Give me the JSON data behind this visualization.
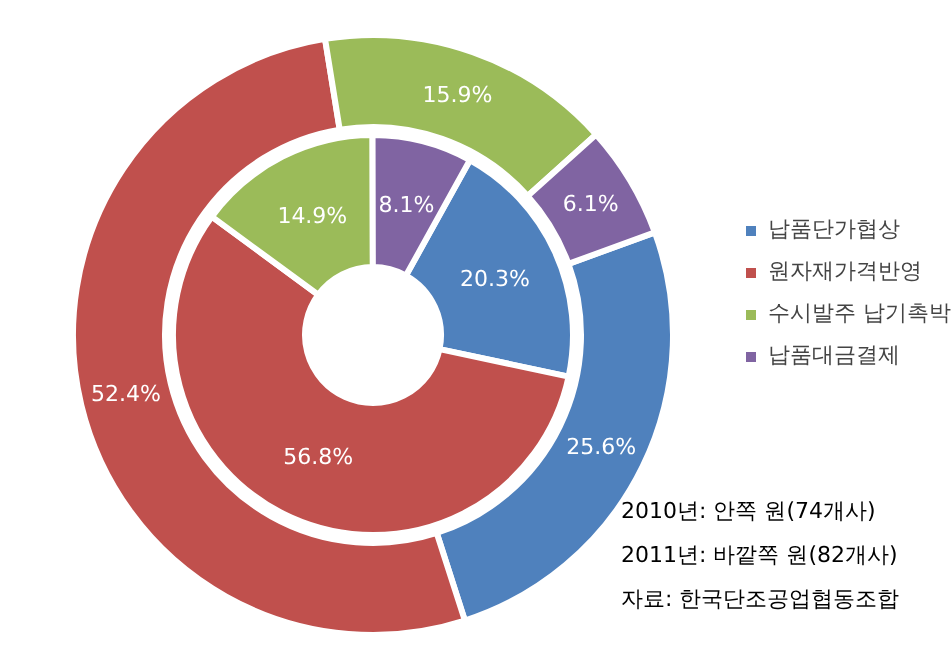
{
  "chart_data": {
    "type": "donut",
    "categories": [
      "납품단가협상",
      "원자재가격반영",
      "수시발주 납기촉박",
      "납품대금결제"
    ],
    "colors": [
      "#4f81bd",
      "#c0504d",
      "#9bbb59",
      "#8064a2"
    ],
    "series": [
      {
        "values": [
          20.3,
          56.8,
          14.9,
          8.1
        ],
        "value_labels": [
          "20.3%",
          "56.8%",
          "14.9%",
          "8.1%"
        ]
      },
      {
        "values": [
          25.6,
          52.4,
          15.9,
          6.1
        ],
        "value_labels": [
          "25.6%",
          "52.4%",
          "15.9%",
          "6.1%"
        ]
      }
    ],
    "legend": "right",
    "annotations": [
      "2010년: 안쪽 원(74개사)",
      "2011년: 바깥쪽 원(82개사)",
      "자료: 한국단조공업협동조합"
    ]
  }
}
